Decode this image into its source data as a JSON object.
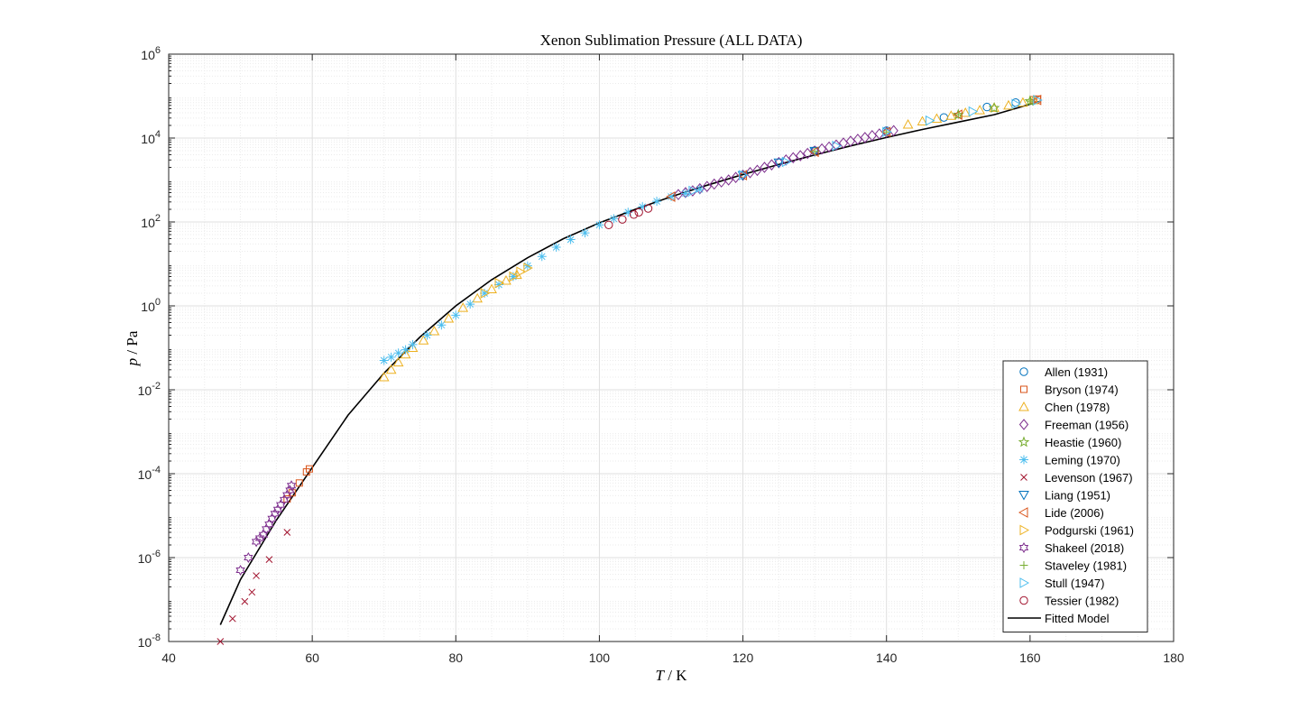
{
  "chart_data": {
    "type": "scatter",
    "title": "Xenon Sublimation Pressure (ALL DATA)",
    "xlabel_var": "T",
    "xlabel_unit": "K",
    "ylabel_var": "p",
    "ylabel_unit": "Pa",
    "xlim": [
      40,
      180
    ],
    "ylim_log10": [
      -8,
      6
    ],
    "yscale": "log",
    "grid": true,
    "minor_grid": true,
    "legend_position": "bottom-right",
    "x_ticks": [
      "40",
      "60",
      "80",
      "100",
      "120",
      "140",
      "160",
      "180"
    ],
    "y_tick_base": "10",
    "y_tick_exponents": [
      "-8",
      "-6",
      "-4",
      "-2",
      "0",
      "2",
      "4",
      "6"
    ],
    "series": [
      {
        "name": "Allen (1931)",
        "marker": "circle",
        "color": "#0072BD",
        "points": [
          [
            130,
            5000
          ],
          [
            140,
            15000
          ],
          [
            148,
            31000
          ],
          [
            154,
            55000
          ],
          [
            158,
            70000
          ]
        ]
      },
      {
        "name": "Bryson (1974)",
        "marker": "square",
        "color": "#D95319",
        "points": [
          [
            56.5,
            2.5e-05
          ],
          [
            57.2,
            3.5e-05
          ],
          [
            58.2,
            6e-05
          ],
          [
            59.2,
            0.00011
          ],
          [
            59.6,
            0.00013
          ],
          [
            160.5,
            82000
          ],
          [
            161,
            85000
          ]
        ]
      },
      {
        "name": "Chen (1978)",
        "marker": "triangle-up",
        "color": "#EDB120",
        "points": [
          [
            70,
            0.02
          ],
          [
            71,
            0.03
          ],
          [
            72,
            0.045
          ],
          [
            73,
            0.07
          ],
          [
            74,
            0.1
          ],
          [
            75.5,
            0.15
          ],
          [
            77,
            0.25
          ],
          [
            79,
            0.5
          ],
          [
            81,
            0.9
          ],
          [
            83,
            1.5
          ],
          [
            85,
            2.5
          ],
          [
            87,
            4
          ],
          [
            88.5,
            5.5
          ],
          [
            143,
            21000
          ],
          [
            145,
            25000
          ],
          [
            147,
            29000
          ],
          [
            149,
            34000
          ],
          [
            151,
            40000
          ],
          [
            153,
            46000
          ],
          [
            155,
            53000
          ],
          [
            157,
            60000
          ],
          [
            159,
            70000
          ],
          [
            160.5,
            80000
          ]
        ]
      },
      {
        "name": "Freeman (1956)",
        "marker": "diamond",
        "color": "#7E2F8E",
        "points": [
          [
            111,
            450
          ],
          [
            112,
            500
          ],
          [
            113,
            550
          ],
          [
            114,
            620
          ],
          [
            115,
            700
          ],
          [
            116,
            800
          ],
          [
            117,
            900
          ],
          [
            118,
            1000
          ],
          [
            119,
            1150
          ],
          [
            120,
            1300
          ],
          [
            121,
            1500
          ],
          [
            122,
            1700
          ],
          [
            123,
            2000
          ],
          [
            124,
            2300
          ],
          [
            125,
            2600
          ],
          [
            126,
            3000
          ],
          [
            127,
            3400
          ],
          [
            128,
            3800
          ],
          [
            129,
            4300
          ],
          [
            130,
            4900
          ],
          [
            131,
            5500
          ],
          [
            132,
            6100
          ],
          [
            133,
            6800
          ],
          [
            134,
            7600
          ],
          [
            135,
            8400
          ],
          [
            136,
            9300
          ],
          [
            137,
            10300
          ],
          [
            138,
            11400
          ],
          [
            139,
            12500
          ],
          [
            140,
            13700
          ],
          [
            141,
            15000
          ]
        ]
      },
      {
        "name": "Heastie (1960)",
        "marker": "pentagram",
        "color": "#77AC30",
        "points": [
          [
            150,
            36000
          ],
          [
            155,
            52000
          ],
          [
            160,
            76000
          ]
        ]
      },
      {
        "name": "Leming (1970)",
        "marker": "asterisk",
        "color": "#4DBEEE",
        "points": [
          [
            70,
            0.05
          ],
          [
            71,
            0.06
          ],
          [
            72,
            0.075
          ],
          [
            73,
            0.09
          ],
          [
            74,
            0.12
          ],
          [
            76,
            0.2
          ],
          [
            78,
            0.35
          ],
          [
            80,
            0.6
          ],
          [
            82,
            1.1
          ],
          [
            84,
            2
          ],
          [
            86,
            3.2
          ],
          [
            88,
            5
          ],
          [
            90,
            9
          ],
          [
            92,
            15
          ],
          [
            94,
            25
          ],
          [
            96,
            38
          ],
          [
            98,
            55
          ],
          [
            100,
            85
          ],
          [
            102,
            120
          ],
          [
            104,
            170
          ],
          [
            106,
            230
          ],
          [
            108,
            310
          ],
          [
            110,
            400
          ],
          [
            112,
            480
          ],
          [
            114,
            600
          ]
        ]
      },
      {
        "name": "Levenson (1967)",
        "marker": "x",
        "color": "#A2142F",
        "points": [
          [
            47.2,
            1e-08
          ],
          [
            48.9,
            3.5e-08
          ],
          [
            50.6,
            9e-08
          ],
          [
            51.6,
            1.5e-07
          ],
          [
            52.2,
            3.7e-07
          ],
          [
            54,
            9e-07
          ],
          [
            56.5,
            4e-06
          ]
        ]
      },
      {
        "name": "Liang (1951)",
        "marker": "triangle-down",
        "color": "#0072BD",
        "points": [
          [
            120,
            1300
          ],
          [
            125,
            2600
          ],
          [
            130,
            4900
          ]
        ]
      },
      {
        "name": "Lide (2006)",
        "marker": "triangle-left",
        "color": "#D95319",
        "points": [
          [
            110,
            400
          ],
          [
            120,
            1300
          ],
          [
            130,
            4700
          ],
          [
            140,
            14000
          ],
          [
            150,
            36000
          ],
          [
            161,
            81000
          ]
        ]
      },
      {
        "name": "Podgurski (1961)",
        "marker": "triangle-right",
        "color": "#EDB120",
        "points": [
          [
            84,
            2
          ],
          [
            86,
            3.5
          ],
          [
            88,
            5
          ],
          [
            89,
            6.5
          ],
          [
            90,
            8
          ]
        ]
      },
      {
        "name": "Shakeel (2018)",
        "marker": "hexagram",
        "color": "#7E2F8E",
        "points": [
          [
            50,
            5e-07
          ],
          [
            51.1,
            1e-06
          ],
          [
            52.2,
            2.4e-06
          ],
          [
            52.7,
            2.9e-06
          ],
          [
            53.2,
            3.5e-06
          ],
          [
            53.6,
            4.8e-06
          ],
          [
            54,
            6.2e-06
          ],
          [
            54.4,
            8.5e-06
          ],
          [
            54.8,
            1.12e-05
          ],
          [
            55.2,
            1.4e-05
          ],
          [
            55.6,
            1.8e-05
          ],
          [
            56.1,
            2.4e-05
          ],
          [
            56.5,
            3.1e-05
          ],
          [
            56.9,
            4e-05
          ],
          [
            57.1,
            5.2e-05
          ]
        ]
      },
      {
        "name": "Staveley (1981)",
        "marker": "plus",
        "color": "#77AC30",
        "points": [
          [
            130,
            4800
          ],
          [
            140,
            14000
          ],
          [
            150,
            36000
          ],
          [
            160,
            76000
          ]
        ]
      },
      {
        "name": "Stull (1947)",
        "marker": "triangle-right",
        "color": "#4DBEEE",
        "points": [
          [
            113,
            550
          ],
          [
            120,
            1300
          ],
          [
            126,
            2700
          ],
          [
            133,
            6500
          ],
          [
            140,
            14000
          ],
          [
            146,
            26000
          ],
          [
            152,
            43000
          ],
          [
            158,
            65000
          ],
          [
            161,
            80000
          ]
        ]
      },
      {
        "name": "Tessier (1982)",
        "marker": "circle",
        "color": "#A2142F",
        "points": [
          [
            101.3,
            85
          ],
          [
            103.2,
            115
          ],
          [
            104.8,
            150
          ],
          [
            105.5,
            170
          ],
          [
            106.8,
            210
          ]
        ]
      }
    ],
    "fit": {
      "name": "Fitted Model",
      "color": "#000000",
      "curve": [
        [
          47.2,
          2.5e-08
        ],
        [
          50,
          3e-07
        ],
        [
          55,
          7.8e-06
        ],
        [
          60,
          0.00014
        ],
        [
          65,
          0.0025
        ],
        [
          70,
          0.025
        ],
        [
          75,
          0.18
        ],
        [
          80,
          1.0
        ],
        [
          85,
          4.2
        ],
        [
          90,
          14
        ],
        [
          95,
          40
        ],
        [
          100,
          95
        ],
        [
          105,
          200
        ],
        [
          110,
          400
        ],
        [
          115,
          750
        ],
        [
          120,
          1350
        ],
        [
          125,
          2350
        ],
        [
          130,
          3950
        ],
        [
          135,
          6500
        ],
        [
          140,
          10300
        ],
        [
          145,
          16000
        ],
        [
          150,
          24000
        ],
        [
          155,
          36000
        ],
        [
          161.4,
          75000
        ]
      ]
    }
  }
}
